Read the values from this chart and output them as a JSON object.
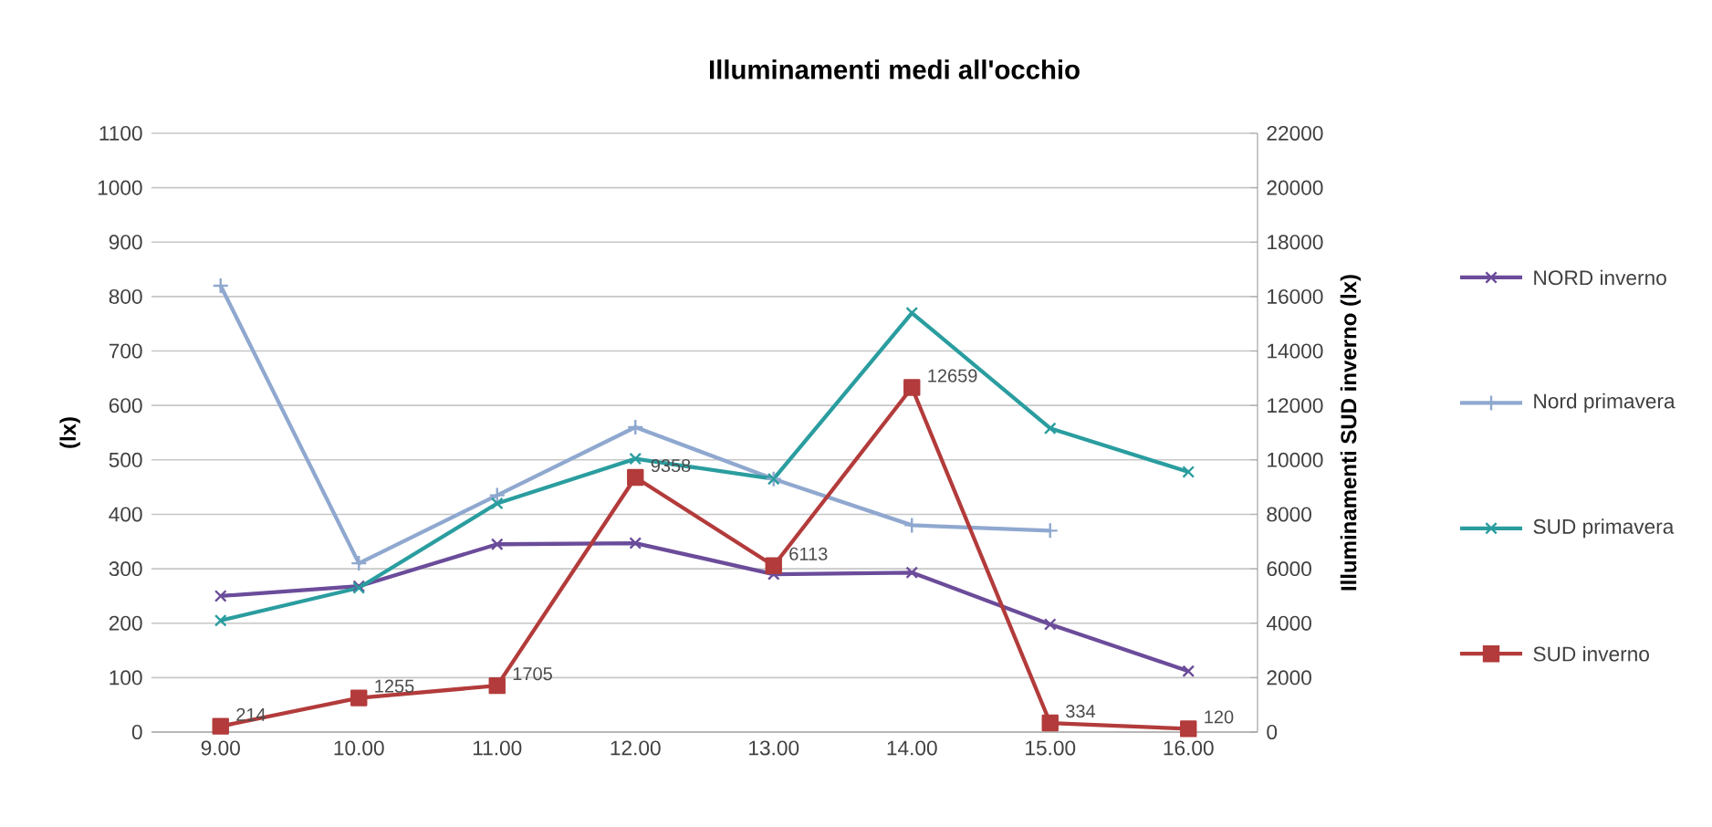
{
  "chart_data": {
    "type": "line",
    "title": "Illuminamenti medi all'occhio",
    "ylabel": "(lx)",
    "y2label": "Illuminamenti SUD inverno  (lx)",
    "categories": [
      "9.00",
      "10.00",
      "11.00",
      "12.00",
      "13.00",
      "14.00",
      "15.00",
      "16.00"
    ],
    "series": [
      {
        "name": "NORD inverno",
        "color": "#6b4c9a",
        "marker": "cross",
        "values": [
          250,
          268,
          345,
          347,
          290,
          293,
          198,
          112
        ]
      },
      {
        "name": "Nord primavera",
        "color": "#8fa8cf",
        "marker": "plus",
        "values": [
          820,
          310,
          435,
          560,
          465,
          380,
          370,
          null
        ]
      },
      {
        "name": "SUD primavera",
        "color": "#2a9d9f",
        "marker": "cross",
        "values": [
          205,
          265,
          420,
          502,
          465,
          770,
          558,
          478
        ]
      },
      {
        "name": "SUD inverno",
        "color": "#b33b3b",
        "marker": "square",
        "axis": "y2",
        "values": [
          214,
          1255,
          1705,
          9358,
          6113,
          12659,
          334,
          120
        ],
        "value_labels": [
          "214",
          "1255",
          "1705",
          "9358",
          "6113",
          "12659",
          "334",
          "120"
        ]
      }
    ],
    "ylim": [
      0,
      1100
    ],
    "yticks": [
      0,
      100,
      200,
      300,
      400,
      500,
      600,
      700,
      800,
      900,
      1000,
      1100
    ],
    "y2lim": [
      0,
      22000
    ],
    "y2ticks": [
      0,
      2000,
      4000,
      6000,
      8000,
      10000,
      12000,
      14000,
      16000,
      18000,
      20000,
      22000
    ],
    "grid": "y",
    "legend": "right"
  }
}
